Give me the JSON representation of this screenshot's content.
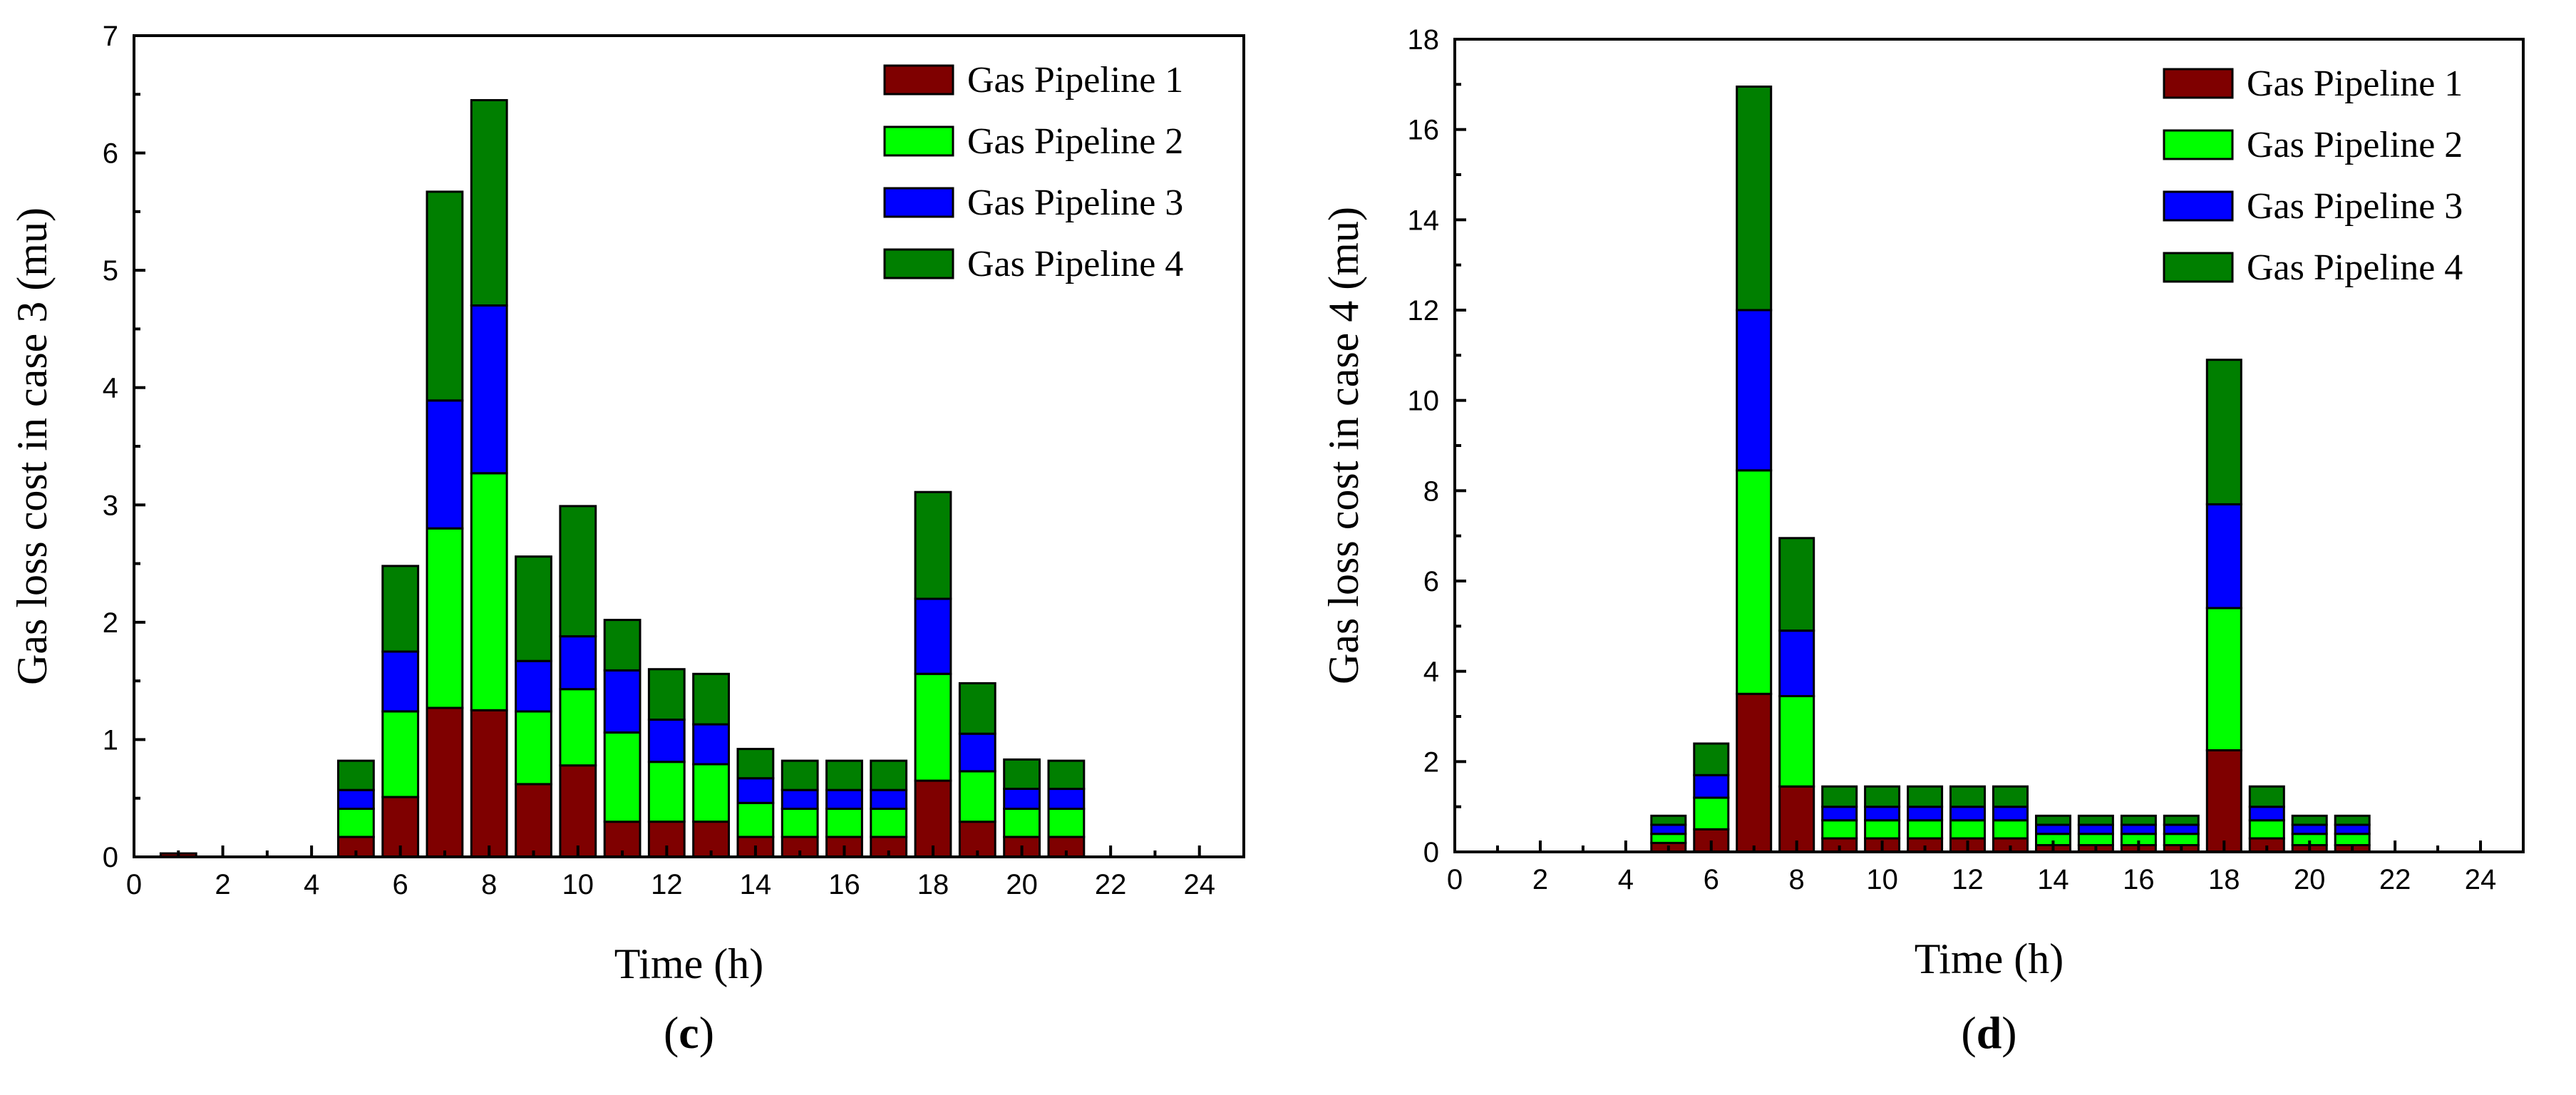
{
  "series_colors": [
    "#7f0000",
    "#00ff00",
    "#0000ff",
    "#007f00"
  ],
  "chart_data": [
    {
      "type": "bar",
      "stacked": true,
      "panel_label": "c",
      "xlabel": "Time (h)",
      "ylabel": "Gas loss cost in case 3 (mu)",
      "xlim": [
        0,
        25
      ],
      "ylim": [
        0,
        7
      ],
      "xticks": [
        0,
        2,
        4,
        6,
        8,
        10,
        12,
        14,
        16,
        18,
        20,
        22,
        24
      ],
      "yticks": [
        0,
        1,
        2,
        3,
        4,
        5,
        6,
        7
      ],
      "legend_position": "top-right",
      "x": [
        1,
        5,
        6,
        7,
        8,
        9,
        10,
        11,
        12,
        13,
        14,
        15,
        16,
        17,
        18,
        19,
        20,
        21
      ],
      "series": [
        {
          "name": "Gas Pipeline 1",
          "values": [
            0.03,
            0.17,
            0.51,
            1.27,
            1.25,
            0.62,
            0.78,
            0.3,
            0.3,
            0.3,
            0.17,
            0.17,
            0.17,
            0.17,
            0.65,
            0.3,
            0.17,
            0.17
          ]
        },
        {
          "name": "Gas Pipeline 2",
          "values": [
            0.0,
            0.24,
            0.73,
            1.53,
            2.02,
            0.62,
            0.65,
            0.76,
            0.51,
            0.49,
            0.29,
            0.24,
            0.24,
            0.24,
            0.91,
            0.43,
            0.24,
            0.24
          ]
        },
        {
          "name": "Gas Pipeline 3",
          "values": [
            0.0,
            0.16,
            0.51,
            1.09,
            1.43,
            0.43,
            0.45,
            0.53,
            0.36,
            0.34,
            0.21,
            0.16,
            0.16,
            0.16,
            0.64,
            0.32,
            0.17,
            0.17
          ]
        },
        {
          "name": "Gas Pipeline 4",
          "values": [
            0.0,
            0.25,
            0.73,
            1.78,
            1.75,
            0.89,
            1.11,
            0.43,
            0.43,
            0.43,
            0.25,
            0.25,
            0.25,
            0.25,
            0.91,
            0.43,
            0.25,
            0.24
          ]
        }
      ]
    },
    {
      "type": "bar",
      "stacked": true,
      "panel_label": "d",
      "xlabel": "Time (h)",
      "ylabel": "Gas loss cost in case 4 (mu)",
      "xlim": [
        0,
        25
      ],
      "ylim": [
        0,
        18
      ],
      "xticks": [
        0,
        2,
        4,
        6,
        8,
        10,
        12,
        14,
        16,
        18,
        20,
        22,
        24
      ],
      "yticks": [
        0,
        2,
        4,
        6,
        8,
        10,
        12,
        14,
        16,
        18
      ],
      "legend_position": "top-right",
      "x": [
        5,
        6,
        7,
        8,
        9,
        10,
        11,
        12,
        13,
        14,
        15,
        16,
        17,
        18,
        19,
        20,
        21
      ],
      "series": [
        {
          "name": "Gas Pipeline 1",
          "values": [
            0.2,
            0.5,
            3.5,
            1.45,
            0.3,
            0.3,
            0.3,
            0.3,
            0.3,
            0.15,
            0.15,
            0.15,
            0.15,
            2.25,
            0.3,
            0.15,
            0.15
          ]
        },
        {
          "name": "Gas Pipeline 2",
          "values": [
            0.2,
            0.7,
            4.95,
            2.0,
            0.4,
            0.4,
            0.4,
            0.4,
            0.4,
            0.25,
            0.25,
            0.25,
            0.25,
            3.15,
            0.4,
            0.25,
            0.25
          ]
        },
        {
          "name": "Gas Pipeline 3",
          "values": [
            0.2,
            0.5,
            3.55,
            1.45,
            0.3,
            0.3,
            0.3,
            0.3,
            0.3,
            0.2,
            0.2,
            0.2,
            0.2,
            2.3,
            0.3,
            0.2,
            0.2
          ]
        },
        {
          "name": "Gas Pipeline 4",
          "values": [
            0.2,
            0.7,
            4.95,
            2.05,
            0.45,
            0.45,
            0.45,
            0.45,
            0.45,
            0.2,
            0.2,
            0.2,
            0.2,
            3.2,
            0.45,
            0.2,
            0.2
          ]
        }
      ]
    }
  ]
}
